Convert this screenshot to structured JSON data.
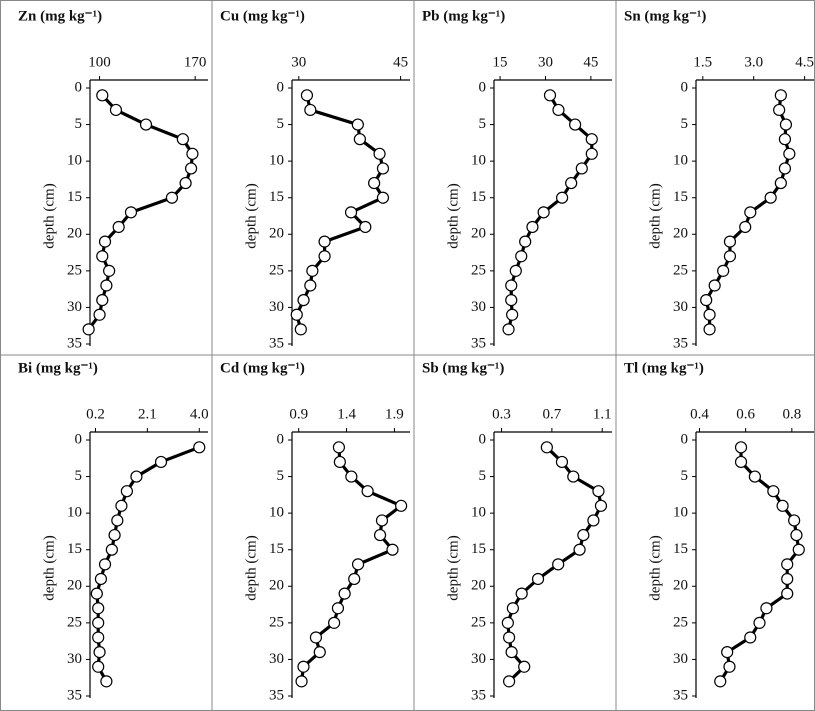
{
  "chart_data": [
    {
      "type": "line",
      "title": "Zn (mg kg⁻¹)",
      "ylabel": "depth (cm)",
      "yaxis": "inverted",
      "xlim": [
        93,
        175
      ],
      "xticks": [
        100,
        170
      ],
      "ylim": [
        0,
        35
      ],
      "yticks": [
        0,
        5,
        10,
        15,
        20,
        25,
        30,
        35
      ],
      "x": [
        102,
        112,
        134,
        161,
        168,
        167,
        163,
        153,
        123,
        114,
        104,
        102,
        107,
        105,
        102,
        100,
        92
      ],
      "y": [
        1,
        3,
        5,
        7,
        9,
        11,
        13,
        15,
        17,
        19,
        21,
        23,
        25,
        27,
        29,
        31,
        33
      ],
      "color": "#000000"
    },
    {
      "type": "line",
      "title": "Cu (mg kg⁻¹)",
      "ylabel": "depth (cm)",
      "yaxis": "inverted",
      "xlim": [
        29,
        45.5
      ],
      "xticks": [
        30,
        45
      ],
      "ylim": [
        0,
        35
      ],
      "yticks": [
        0,
        5,
        10,
        15,
        20,
        25,
        30,
        35
      ],
      "x": [
        31.2,
        31.7,
        38.7,
        39.0,
        41.9,
        42.4,
        41.1,
        42.4,
        37.7,
        39.8,
        33.8,
        33.8,
        32.0,
        31.7,
        30.7,
        29.7,
        30.3
      ],
      "y": [
        1,
        3,
        5,
        7,
        9,
        11,
        13,
        15,
        17,
        19,
        21,
        23,
        25,
        27,
        29,
        31,
        33
      ],
      "color": "#000000"
    },
    {
      "type": "line",
      "title": "Pb (mg kg⁻¹)",
      "ylabel": "depth (cm)",
      "yaxis": "inverted",
      "xlim": [
        13,
        50
      ],
      "xticks": [
        15,
        30,
        45
      ],
      "ylim": [
        0,
        35
      ],
      "yticks": [
        0,
        5,
        10,
        15,
        20,
        25,
        30,
        35
      ],
      "x": [
        31.5,
        34.3,
        39.8,
        45.3,
        45.3,
        42,
        38.5,
        35.5,
        29.4,
        25.7,
        23.3,
        22,
        20.2,
        18.7,
        18.7,
        19,
        17.8
      ],
      "y": [
        1,
        3,
        5,
        7,
        9,
        11,
        13,
        15,
        17,
        19,
        21,
        23,
        25,
        27,
        29,
        31,
        33
      ],
      "color": "#000000"
    },
    {
      "type": "line",
      "title": "Sn (mg kg⁻¹)",
      "ylabel": "depth (cm)",
      "yaxis": "inverted",
      "xlim": [
        1.3,
        4.6
      ],
      "xticks": [
        1.5,
        {
          "value": 3,
          "label": "3.0"
        },
        4.5
      ],
      "ylim": [
        0,
        35
      ],
      "yticks": [
        0,
        5,
        10,
        15,
        20,
        25,
        30,
        35
      ],
      "x": [
        3.8,
        3.75,
        3.95,
        3.92,
        4.05,
        3.92,
        3.8,
        3.5,
        2.9,
        2.75,
        2.3,
        2.3,
        2.1,
        1.85,
        1.6,
        1.7,
        1.7
      ],
      "y": [
        1,
        3,
        5,
        7,
        9,
        11,
        13,
        15,
        17,
        19,
        21,
        23,
        25,
        27,
        29,
        31,
        33
      ],
      "color": "#000000"
    },
    {
      "type": "line",
      "title": "Bi (mg kg⁻¹)",
      "ylabel": "depth (cm)",
      "yaxis": "inverted",
      "xlim": [
        0,
        4.1
      ],
      "xticks": [
        0.2,
        2.1,
        {
          "value": 4,
          "label": "4.0"
        }
      ],
      "ylim": [
        0,
        35
      ],
      "yticks": [
        0,
        5,
        10,
        15,
        20,
        25,
        30,
        35
      ],
      "x": [
        4.0,
        2.6,
        1.7,
        1.35,
        1.15,
        1.0,
        0.9,
        0.8,
        0.55,
        0.4,
        0.25,
        0.3,
        0.3,
        0.3,
        0.35,
        0.3,
        0.6
      ],
      "y": [
        1,
        3,
        5,
        7,
        9,
        11,
        13,
        15,
        17,
        19,
        21,
        23,
        25,
        27,
        29,
        31,
        33
      ],
      "color": "#000000"
    },
    {
      "type": "line",
      "title": "Cd (mg kg⁻¹)",
      "ylabel": "depth (cm)",
      "yaxis": "inverted",
      "xlim": [
        0.83,
        2.0
      ],
      "xticks": [
        0.9,
        1.4,
        1.9
      ],
      "ylim": [
        0,
        35
      ],
      "yticks": [
        0,
        5,
        10,
        15,
        20,
        25,
        30,
        35
      ],
      "x": [
        1.32,
        1.33,
        1.45,
        1.62,
        1.97,
        1.77,
        1.75,
        1.88,
        1.52,
        1.48,
        1.38,
        1.31,
        1.27,
        1.08,
        1.12,
        0.95,
        0.93
      ],
      "y": [
        1,
        3,
        5,
        7,
        9,
        11,
        13,
        15,
        17,
        19,
        21,
        23,
        25,
        27,
        29,
        31,
        33
      ],
      "color": "#000000"
    },
    {
      "type": "line",
      "title": "Sb (mg kg⁻¹)",
      "ylabel": "depth (cm)",
      "yaxis": "inverted",
      "xlim": [
        0.24,
        1.13
      ],
      "xticks": [
        0.3,
        0.7,
        1.1
      ],
      "ylim": [
        0,
        35
      ],
      "yticks": [
        0,
        5,
        10,
        15,
        20,
        25,
        30,
        35
      ],
      "x": [
        0.66,
        0.78,
        0.87,
        1.07,
        1.09,
        1.03,
        0.95,
        0.92,
        0.75,
        0.59,
        0.46,
        0.39,
        0.35,
        0.36,
        0.38,
        0.48,
        0.36
      ],
      "y": [
        1,
        3,
        5,
        7,
        9,
        11,
        13,
        15,
        17,
        19,
        21,
        23,
        25,
        27,
        29,
        31,
        33
      ],
      "color": "#000000"
    },
    {
      "type": "line",
      "title": "Tl (mg kg⁻¹)",
      "ylabel": "depth (cm)",
      "yaxis": "inverted",
      "xlim": [
        0.385,
        0.87
      ],
      "xticks": [
        0.4,
        0.6,
        0.8
      ],
      "ylim": [
        0,
        35
      ],
      "yticks": [
        0,
        5,
        10,
        15,
        20,
        25,
        30,
        35
      ],
      "x": [
        0.58,
        0.58,
        0.64,
        0.72,
        0.76,
        0.81,
        0.82,
        0.83,
        0.78,
        0.78,
        0.78,
        0.69,
        0.66,
        0.62,
        0.52,
        0.53,
        0.49
      ],
      "y": [
        1,
        3,
        5,
        7,
        9,
        11,
        13,
        15,
        17,
        19,
        21,
        23,
        25,
        27,
        29,
        31,
        33
      ],
      "color": "#000000"
    }
  ]
}
